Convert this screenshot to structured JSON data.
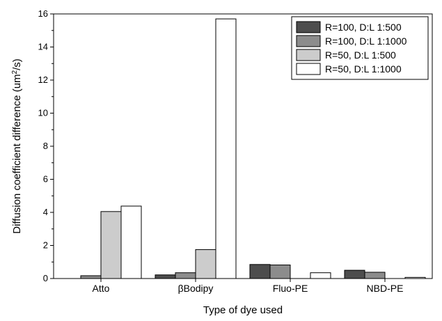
{
  "chart_data": {
    "type": "bar",
    "categories": [
      "Atto",
      "βBodipy",
      "Fluo-PE",
      "NBD-PE"
    ],
    "series": [
      {
        "name": "R=100, D:L 1:500",
        "color": "#4d4d4d",
        "values": [
          0.0,
          0.22,
          0.85,
          0.5
        ]
      },
      {
        "name": "R=100, D:L 1:1000",
        "color": "#8c8c8c",
        "values": [
          0.17,
          0.35,
          0.82,
          0.38
        ]
      },
      {
        "name": "R=50, D:L 1:500",
        "color": "#cccccc",
        "values": [
          4.05,
          1.75,
          0.0,
          0.0
        ]
      },
      {
        "name": "R=50, D:L 1:1000",
        "color": "#ffffff",
        "values": [
          4.38,
          15.7,
          0.35,
          0.07
        ]
      }
    ],
    "xlabel": "Type of dye used",
    "ylabel": {
      "main": "Diffusion coefficient difference (um",
      "sup": "2",
      "end": "/s)"
    },
    "ylim": [
      0,
      16
    ],
    "yticks": [
      "0",
      "2",
      "4",
      "6",
      "8",
      "10",
      "12",
      "14",
      "16"
    ],
    "grid": false,
    "legend_position": "top-right"
  }
}
